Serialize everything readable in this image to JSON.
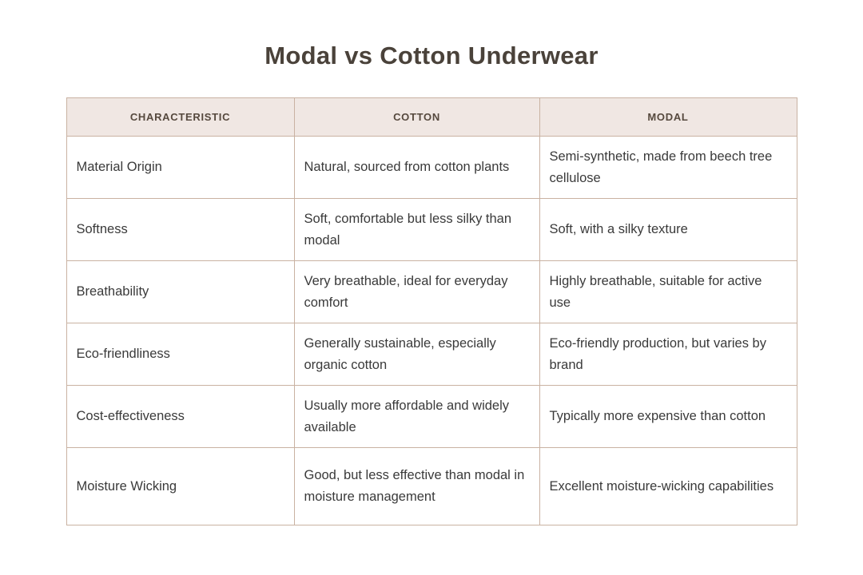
{
  "page": {
    "title": "Modal vs Cotton Underwear"
  },
  "colors": {
    "background": "#ffffff",
    "title_text": "#4a423a",
    "header_background": "#f0e7e3",
    "header_text": "#56493e",
    "border": "#c9b2a2",
    "body_text": "#3a3a3a"
  },
  "table": {
    "headers": [
      "CHARACTERISTIC",
      "COTTON",
      "MODAL"
    ],
    "rows": [
      {
        "characteristic": "Material Origin",
        "cotton": "Natural, sourced from cotton plants",
        "modal": "Semi-synthetic, made from beech tree cellulose"
      },
      {
        "characteristic": "Softness",
        "cotton": "Soft, comfortable but less silky than modal",
        "modal": "Soft, with a silky texture"
      },
      {
        "characteristic": "Breathability",
        "cotton": "Very breathable, ideal for everyday comfort",
        "modal": "Highly breathable, suitable for active use"
      },
      {
        "characteristic": "Eco-friendliness",
        "cotton": "Generally sustainable, especially organic cotton",
        "modal": "Eco-friendly production, but varies by brand"
      },
      {
        "characteristic": "Cost-effectiveness",
        "cotton": "Usually more affordable and widely available",
        "modal": "Typically more expensive than cotton"
      },
      {
        "characteristic": "Moisture Wicking",
        "cotton": "Good, but less effective than modal in moisture management",
        "modal": "Excellent moisture-wicking capabilities"
      }
    ]
  },
  "chart_data": {
    "type": "table",
    "title": "Modal vs Cotton Underwear",
    "columns": [
      "CHARACTERISTIC",
      "COTTON",
      "MODAL"
    ],
    "rows": [
      [
        "Material Origin",
        "Natural, sourced from cotton plants",
        "Semi-synthetic, made from beech tree cellulose"
      ],
      [
        "Softness",
        "Soft, comfortable but less silky than modal",
        "Soft, with a silky texture"
      ],
      [
        "Breathability",
        "Very breathable, ideal for everyday comfort",
        "Highly breathable, suitable for active use"
      ],
      [
        "Eco-friendliness",
        "Generally sustainable, especially organic cotton",
        "Eco-friendly production, but varies by brand"
      ],
      [
        "Cost-effectiveness",
        "Usually more affordable and widely available",
        "Typically more expensive than cotton"
      ],
      [
        "Moisture Wicking",
        "Good, but less effective than modal in moisture management",
        "Excellent moisture-wicking capabilities"
      ]
    ],
    "layout": {
      "header_fill": "#f0e7e3",
      "grid": "on",
      "title_position": "top-center"
    }
  }
}
